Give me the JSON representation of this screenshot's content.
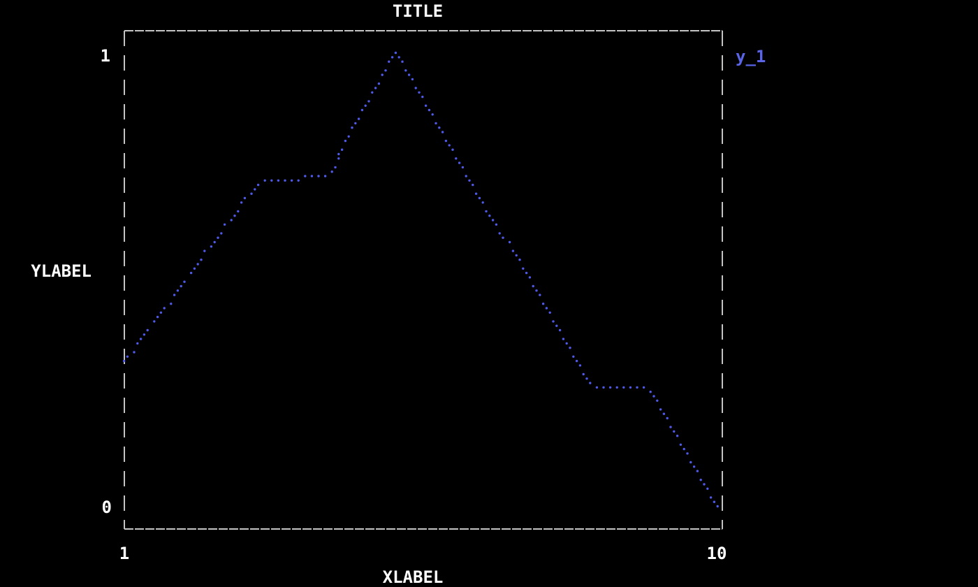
{
  "title": "TITLE",
  "axes": {
    "xlabel": "XLABEL",
    "ylabel": "YLABEL",
    "x_tick_left": "1",
    "x_tick_right": "10",
    "y_tick_top": "1",
    "y_tick_bottom": "0"
  },
  "legend": {
    "label": "y_1",
    "color": "#5a64e6",
    "position": "outside-top-right"
  },
  "colors": {
    "background": "#000000",
    "text": "#ffffff",
    "frame": "#c4c4c4",
    "series": "#4f59e8"
  },
  "chart_data": {
    "type": "scatter",
    "title": "TITLE",
    "xlabel": "XLABEL",
    "ylabel": "YLABEL",
    "xlim": [
      1,
      10
    ],
    "ylim": [
      0,
      1
    ],
    "x_ticks": [
      1,
      10
    ],
    "y_ticks": [
      0,
      1
    ],
    "grid": false,
    "legend_position": "outside-top-right",
    "marker": "dot",
    "style": "terminal-dotted-frame",
    "series": [
      {
        "name": "y_1",
        "color": "#4f59e8",
        "x": [
          1,
          2,
          3,
          4,
          5,
          6,
          7,
          8,
          9,
          10
        ],
        "y": [
          0.33,
          0.51,
          0.71,
          0.73,
          1.0,
          0.77,
          0.53,
          0.28,
          0.24,
          0.0
        ],
        "vertices": [
          [
            1.0,
            0.325
          ],
          [
            1.98,
            0.511
          ],
          [
            3.0,
            0.713
          ],
          [
            4.08,
            0.731
          ],
          [
            5.06,
            1.0
          ],
          [
            8.03,
            0.273
          ],
          [
            8.91,
            0.264
          ],
          [
            9.95,
            0.0
          ]
        ]
      }
    ]
  }
}
